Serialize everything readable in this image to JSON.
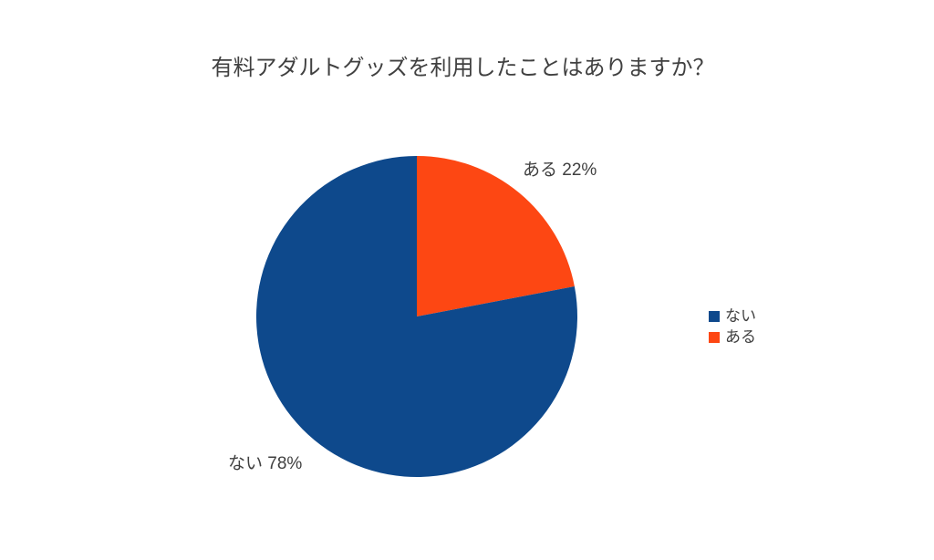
{
  "page": {
    "background": "#ffffff",
    "text_color": "#404040"
  },
  "chart_data": {
    "type": "pie",
    "title": "有料アダルトグッズを利用したことはありますか？",
    "categories": [
      "ない",
      "ある"
    ],
    "values": [
      78,
      22
    ],
    "unit": "%",
    "start_angle_deg": 0,
    "direction": "clockwise",
    "legend_position": "right",
    "slices": [
      {
        "label": "ある",
        "value": 22,
        "color": "#FD4713",
        "callout": "ある 22%"
      },
      {
        "label": "ない",
        "value": 78,
        "color": "#0E498C",
        "callout": "ない 78%"
      }
    ],
    "legend": [
      {
        "label": "ない",
        "color": "#0E498C"
      },
      {
        "label": "ある",
        "color": "#FD4713"
      }
    ]
  }
}
